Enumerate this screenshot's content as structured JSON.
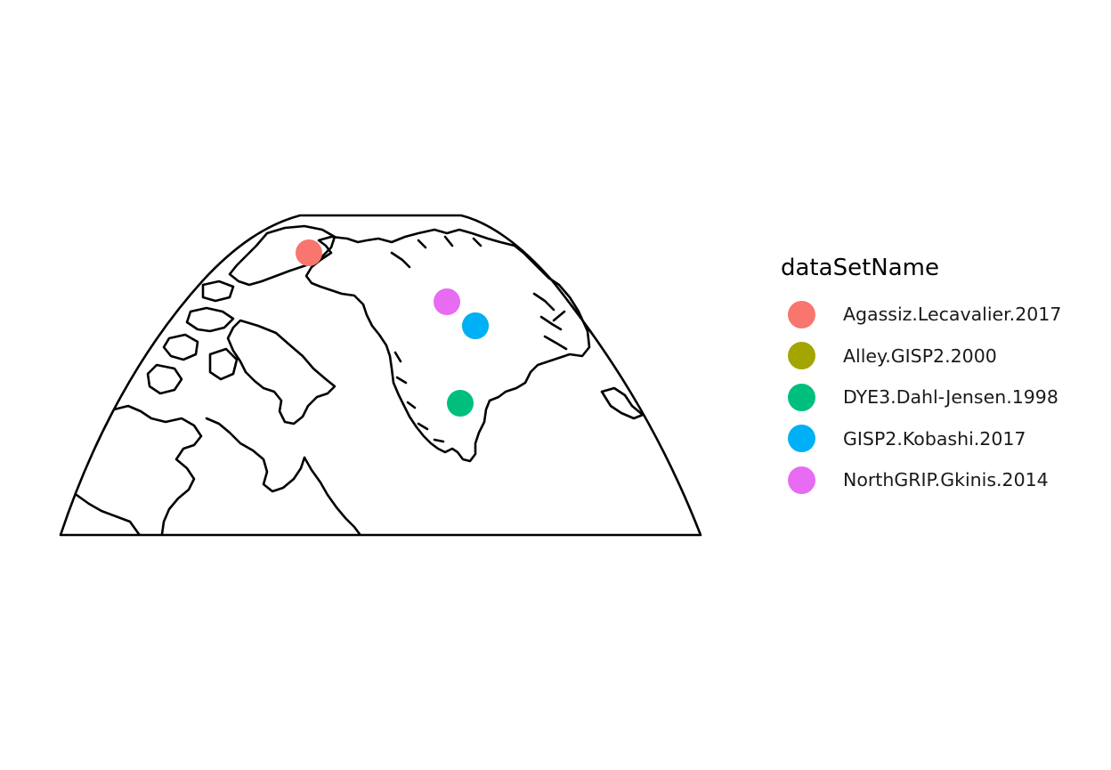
{
  "legend": {
    "title": "dataSetName",
    "items": [
      {
        "label": "Agassiz.Lecavalier.2017",
        "color": "#F8766D"
      },
      {
        "label": "Alley.GISP2.2000",
        "color": "#A3A500"
      },
      {
        "label": "DYE3.Dahl-Jensen.1998",
        "color": "#00BF7D"
      },
      {
        "label": "GISP2.Kobashi.2017",
        "color": "#00B0F6"
      },
      {
        "label": "NorthGRIP.Gkinis.2014",
        "color": "#E76BF3"
      }
    ]
  },
  "sites": [
    {
      "name": "Agassiz.Lecavalier.2017",
      "color": "#F8766D"
    },
    {
      "name": "Alley.GISP2.2000",
      "color": "#A3A500"
    },
    {
      "name": "DYE3.Dahl-Jensen.1998",
      "color": "#00BF7D"
    },
    {
      "name": "GISP2.Kobashi.2017",
      "color": "#00B0F6"
    },
    {
      "name": "NorthGRIP.Gkinis.2014",
      "color": "#E76BF3"
    }
  ]
}
